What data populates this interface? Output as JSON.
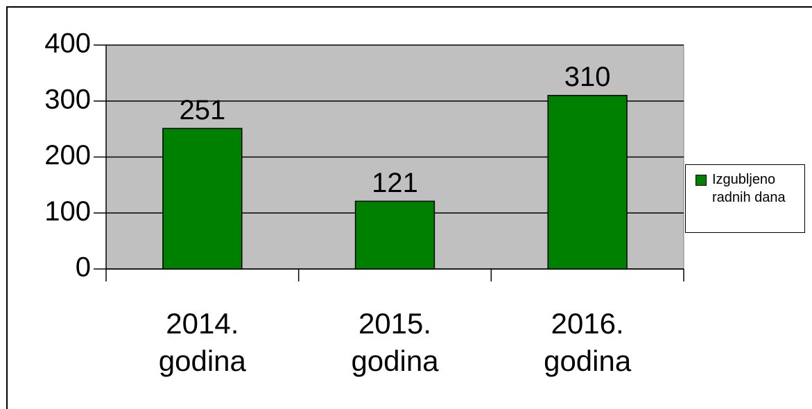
{
  "chart_data": {
    "type": "bar",
    "categories": [
      "2014. godina",
      "2015. godina",
      "2016. godina"
    ],
    "series": [
      {
        "name": "Izgubljeno radnih dana",
        "color": "#008000",
        "values": [
          251,
          121,
          310
        ]
      }
    ],
    "ylim": [
      0,
      400
    ],
    "yticks": [
      0,
      100,
      200,
      300,
      400
    ],
    "grid": true
  }
}
